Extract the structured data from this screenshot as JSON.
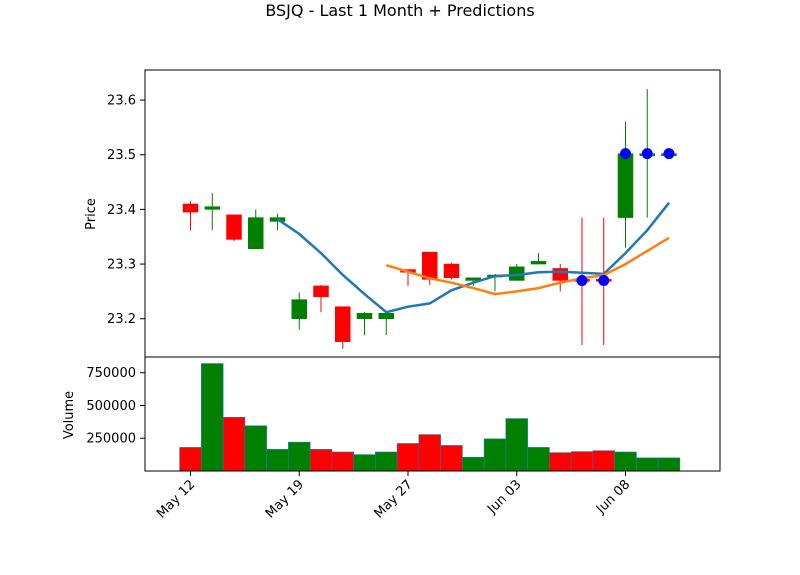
{
  "chart_data": {
    "type": "candlestick",
    "title": "BSJQ - Last 1 Month + Predictions",
    "colors": {
      "up": "#008000",
      "down": "#ff0000",
      "ma_short": "#1f77b4",
      "ma_long": "#ff7f0e",
      "prediction_marker": "#0000ff"
    },
    "price_panel": {
      "ylabel": "Price",
      "ylim": [
        23.13,
        23.655
      ],
      "yticks": [
        23.2,
        23.3,
        23.4,
        23.5,
        23.6
      ],
      "ytick_labels": [
        "23.2",
        "23.3",
        "23.4",
        "23.5",
        "23.6"
      ]
    },
    "volume_panel": {
      "ylabel": "Volume",
      "ylim": [
        0,
        870000
      ],
      "yticks": [
        250000,
        500000,
        750000
      ],
      "ytick_labels": [
        "250000",
        "500000",
        "750000"
      ]
    },
    "xticks": [
      {
        "index": 0,
        "label": "May 12"
      },
      {
        "index": 5,
        "label": "May 19"
      },
      {
        "index": 10,
        "label": "May 27"
      },
      {
        "index": 15,
        "label": "Jun 03"
      },
      {
        "index": 20,
        "label": "Jun 08"
      }
    ],
    "candles": [
      {
        "open": 23.41,
        "high": 23.415,
        "low": 23.362,
        "close": 23.395,
        "volume": 180000
      },
      {
        "open": 23.4,
        "high": 23.43,
        "low": 23.362,
        "close": 23.405,
        "volume": 820000
      },
      {
        "open": 23.39,
        "high": 23.39,
        "low": 23.342,
        "close": 23.345,
        "volume": 410000
      },
      {
        "open": 23.328,
        "high": 23.4,
        "low": 23.328,
        "close": 23.385,
        "volume": 345000
      },
      {
        "open": 23.378,
        "high": 23.392,
        "low": 23.362,
        "close": 23.385,
        "volume": 165000
      },
      {
        "open": 23.2,
        "high": 23.248,
        "low": 23.18,
        "close": 23.235,
        "volume": 220000
      },
      {
        "open": 23.26,
        "high": 23.262,
        "low": 23.212,
        "close": 23.24,
        "volume": 165000
      },
      {
        "open": 23.222,
        "high": 23.222,
        "low": 23.145,
        "close": 23.158,
        "volume": 145000
      },
      {
        "open": 23.2,
        "high": 23.212,
        "low": 23.17,
        "close": 23.21,
        "volume": 125000
      },
      {
        "open": 23.2,
        "high": 23.212,
        "low": 23.17,
        "close": 23.21,
        "volume": 145000
      },
      {
        "open": 23.29,
        "high": 23.29,
        "low": 23.26,
        "close": 23.285,
        "volume": 210000
      },
      {
        "open": 23.322,
        "high": 23.322,
        "low": 23.262,
        "close": 23.272,
        "volume": 278000
      },
      {
        "open": 23.3,
        "high": 23.302,
        "low": 23.272,
        "close": 23.275,
        "volume": 195000
      },
      {
        "open": 23.27,
        "high": 23.275,
        "low": 23.26,
        "close": 23.275,
        "volume": 105000
      },
      {
        "open": 23.28,
        "high": 23.282,
        "low": 23.25,
        "close": 23.28,
        "volume": 245000
      },
      {
        "open": 23.27,
        "high": 23.3,
        "low": 23.27,
        "close": 23.295,
        "volume": 400000
      },
      {
        "open": 23.3,
        "high": 23.32,
        "low": 23.3,
        "close": 23.305,
        "volume": 180000
      },
      {
        "open": 23.292,
        "high": 23.3,
        "low": 23.25,
        "close": 23.27,
        "volume": 140000
      },
      {
        "open": 23.272,
        "high": 23.385,
        "low": 23.152,
        "close": 23.27,
        "volume": 148000
      },
      {
        "open": 23.272,
        "high": 23.385,
        "low": 23.152,
        "close": 23.27,
        "volume": 155000
      },
      {
        "open": 23.385,
        "high": 23.56,
        "low": 23.33,
        "close": 23.502,
        "volume": 145000
      },
      {
        "open": 23.502,
        "high": 23.62,
        "low": 23.385,
        "close": 23.502,
        "volume": 100000
      },
      {
        "open": 23.502,
        "high": 23.502,
        "low": 23.502,
        "close": 23.502,
        "volume": 100000
      }
    ],
    "ma_short": [
      {
        "index": 4,
        "value": 23.382
      },
      {
        "index": 5,
        "value": 23.355
      },
      {
        "index": 6,
        "value": 23.32
      },
      {
        "index": 7,
        "value": 23.28
      },
      {
        "index": 8,
        "value": 23.245
      },
      {
        "index": 9,
        "value": 23.212
      },
      {
        "index": 10,
        "value": 23.222
      },
      {
        "index": 11,
        "value": 23.228
      },
      {
        "index": 12,
        "value": 23.252
      },
      {
        "index": 13,
        "value": 23.266
      },
      {
        "index": 14,
        "value": 23.278
      },
      {
        "index": 15,
        "value": 23.28
      },
      {
        "index": 16,
        "value": 23.285
      },
      {
        "index": 17,
        "value": 23.286
      },
      {
        "index": 18,
        "value": 23.284
      },
      {
        "index": 19,
        "value": 23.282
      },
      {
        "index": 20,
        "value": 23.32
      },
      {
        "index": 21,
        "value": 23.362
      },
      {
        "index": 22,
        "value": 23.412
      }
    ],
    "ma_long": [
      {
        "index": 9,
        "value": 23.298
      },
      {
        "index": 10,
        "value": 23.286
      },
      {
        "index": 11,
        "value": 23.274
      },
      {
        "index": 12,
        "value": 23.266
      },
      {
        "index": 13,
        "value": 23.256
      },
      {
        "index": 14,
        "value": 23.245
      },
      {
        "index": 15,
        "value": 23.25
      },
      {
        "index": 16,
        "value": 23.256
      },
      {
        "index": 17,
        "value": 23.266
      },
      {
        "index": 18,
        "value": 23.274
      },
      {
        "index": 19,
        "value": 23.28
      },
      {
        "index": 20,
        "value": 23.3
      },
      {
        "index": 21,
        "value": 23.324
      },
      {
        "index": 22,
        "value": 23.348
      }
    ],
    "prediction_markers": [
      {
        "index": 18,
        "value": 23.27
      },
      {
        "index": 19,
        "value": 23.27
      },
      {
        "index": 20,
        "value": 23.502
      },
      {
        "index": 21,
        "value": 23.502
      },
      {
        "index": 22,
        "value": 23.502
      }
    ]
  }
}
